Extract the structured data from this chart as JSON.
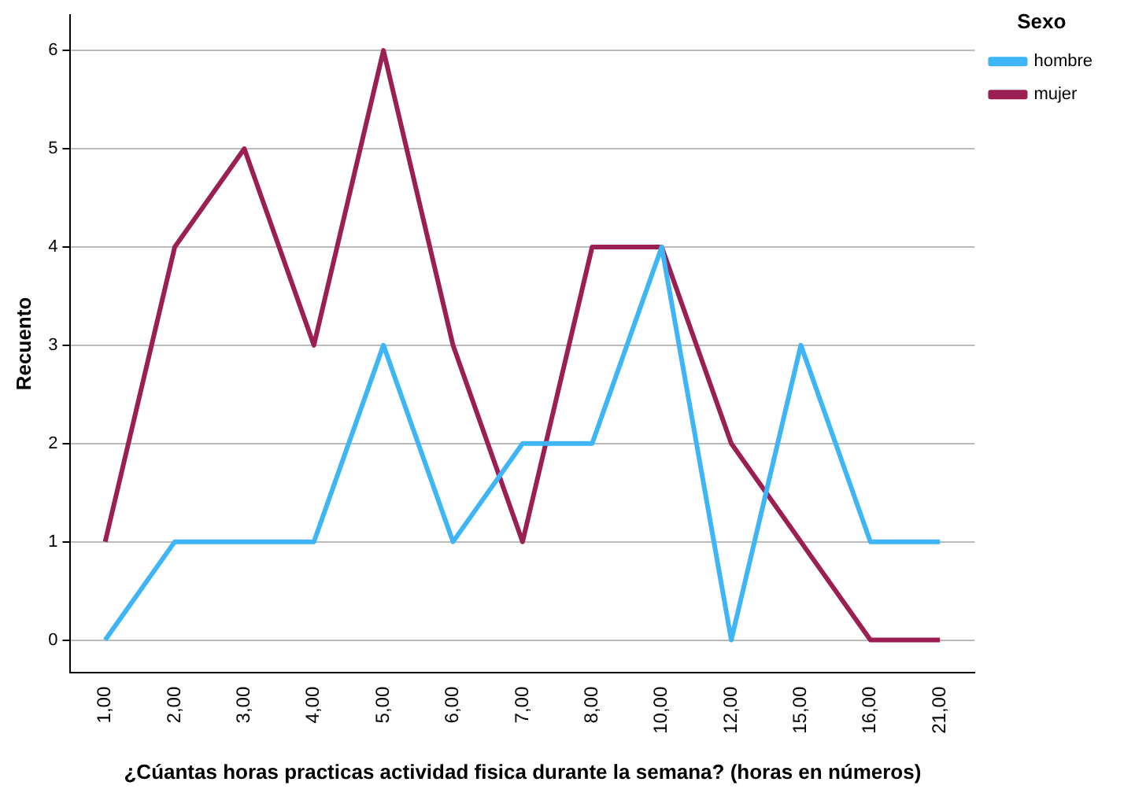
{
  "chart_data": {
    "type": "line",
    "xlabel": "¿Cúantas horas practicas actividad fisica durante la semana? (horas en números)",
    "ylabel": "Recuento",
    "legend_title": "Sexo",
    "categories": [
      "1,00",
      "2,00",
      "3,00",
      "4,00",
      "5,00",
      "6,00",
      "7,00",
      "8,00",
      "10,00",
      "12,00",
      "15,00",
      "16,00",
      "21,00"
    ],
    "series": [
      {
        "name": "hombre",
        "color": "#3db5f7",
        "values": [
          0,
          1,
          1,
          1,
          3,
          1,
          2,
          2,
          4,
          0,
          3,
          1,
          1
        ]
      },
      {
        "name": "mujer",
        "color": "#9b1f52",
        "values": [
          1,
          4,
          5,
          3,
          6,
          3,
          1,
          4,
          4,
          2,
          1,
          0,
          0
        ]
      }
    ],
    "ylim": [
      -0.33,
      6.36
    ],
    "yticks": [
      0,
      1,
      2,
      3,
      4,
      5,
      6
    ],
    "grid": "y",
    "legend": "top right",
    "marker": "none",
    "line_style": "solid"
  }
}
